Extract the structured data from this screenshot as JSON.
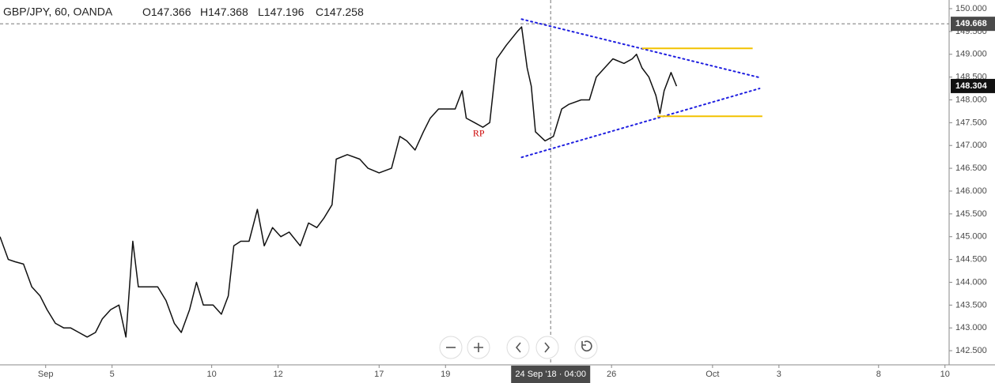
{
  "chart_data": {
    "type": "line",
    "title": "GBP/JPY, 60, OANDA",
    "ohlc": [
      {
        "label": "O",
        "value": 147.366
      },
      {
        "label": "H",
        "value": 147.368
      },
      {
        "label": "L",
        "value": 147.196
      },
      {
        "label": "C",
        "value": 147.258
      }
    ],
    "color": "#111111",
    "x": [
      0,
      6,
      11,
      17,
      23,
      29,
      34,
      40,
      46,
      51,
      57,
      63,
      69,
      74,
      80,
      86,
      91,
      96,
      100,
      106,
      114,
      120,
      126,
      131,
      137,
      142,
      147,
      154,
      160,
      165,
      169,
      174,
      180,
      186,
      191,
      197,
      203,
      209,
      217,
      223,
      229,
      234,
      240,
      243,
      251,
      260,
      266,
      274,
      283,
      289,
      294,
      300,
      306,
      311,
      317,
      323,
      329,
      334,
      337,
      343,
      349,
      354,
      359,
      366,
      374,
      377,
      381,
      384,
      387,
      394,
      400,
      406,
      411,
      420,
      426,
      431,
      437,
      443,
      451,
      457,
      460,
      464,
      469,
      474,
      477,
      480,
      485,
      489
    ],
    "values": [
      145.0,
      144.5,
      144.45,
      144.4,
      143.9,
      143.7,
      143.4,
      143.1,
      143.0,
      143.0,
      142.9,
      142.8,
      142.9,
      143.2,
      143.4,
      143.5,
      142.8,
      144.9,
      143.9,
      143.9,
      143.9,
      143.6,
      143.1,
      142.9,
      143.4,
      144.0,
      143.5,
      143.5,
      143.3,
      143.7,
      144.8,
      144.9,
      144.9,
      145.6,
      144.8,
      145.2,
      145.0,
      145.1,
      144.8,
      145.3,
      145.2,
      145.4,
      145.7,
      146.7,
      146.8,
      146.7,
      146.5,
      146.4,
      146.5,
      147.2,
      147.1,
      146.9,
      147.3,
      147.6,
      147.8,
      147.8,
      147.8,
      148.2,
      147.6,
      147.5,
      147.4,
      147.5,
      148.9,
      149.2,
      149.5,
      149.6,
      148.7,
      148.3,
      147.3,
      147.1,
      147.2,
      147.8,
      147.9,
      148.0,
      148.0,
      148.5,
      148.7,
      148.9,
      148.8,
      148.9,
      149.0,
      148.7,
      148.5,
      148.1,
      147.7,
      148.2,
      148.6,
      148.3
    ],
    "xlim": [
      0,
      686
    ],
    "ylim": [
      142.19,
      150.19
    ],
    "xticks": [
      {
        "value": 33,
        "label": "Sep"
      },
      {
        "value": 81,
        "label": "5"
      },
      {
        "value": 153,
        "label": "10"
      },
      {
        "value": 201,
        "label": "12"
      },
      {
        "value": 274,
        "label": "17"
      },
      {
        "value": 322,
        "label": "19"
      },
      {
        "value": 442,
        "label": "26"
      },
      {
        "value": 515,
        "label": "Oct"
      },
      {
        "value": 563,
        "label": "3"
      },
      {
        "value": 635,
        "label": "8"
      },
      {
        "value": 683,
        "label": "10"
      }
    ],
    "yticks": [
      {
        "value": 142.5,
        "label": "142.500"
      },
      {
        "value": 143,
        "label": "143.000"
      },
      {
        "value": 143.5,
        "label": "143.500"
      },
      {
        "value": 144,
        "label": "144.000"
      },
      {
        "value": 144.5,
        "label": "144.500"
      },
      {
        "value": 145,
        "label": "145.000"
      },
      {
        "value": 145.5,
        "label": "145.500"
      },
      {
        "value": 146,
        "label": "146.000"
      },
      {
        "value": 146.5,
        "label": "146.500"
      },
      {
        "value": 147,
        "label": "147.000"
      },
      {
        "value": 147.5,
        "label": "147.500"
      },
      {
        "value": 148,
        "label": "148.000"
      },
      {
        "value": 148.5,
        "label": "148.500"
      },
      {
        "value": 149,
        "label": "149.000"
      },
      {
        "value": 149.5,
        "label": "149.500"
      },
      {
        "value": 150,
        "label": "150.000"
      }
    ],
    "grid": false,
    "crosshair": {
      "x": {
        "value": 398,
        "label": "24 Sep '18 · 04:00"
      },
      "y": 149.668
    },
    "last_price": 148.304,
    "annotations": [
      {
        "text": "RP",
        "x": 346,
        "y": 147.25,
        "color": "#cc0000"
      }
    ],
    "trendlines": [
      {
        "color": "#1f1fe0",
        "x": [
          377,
          549
        ],
        "y": [
          149.77,
          148.49
        ]
      },
      {
        "color": "#1f1fe0",
        "x": [
          377,
          549
        ],
        "y": [
          146.74,
          148.25
        ]
      }
    ],
    "levels": [
      {
        "color": "#f2c200",
        "x": [
          464,
          544
        ],
        "y": 149.13
      },
      {
        "color": "#f2c200",
        "x": [
          475,
          551
        ],
        "y": 147.64
      }
    ]
  }
}
